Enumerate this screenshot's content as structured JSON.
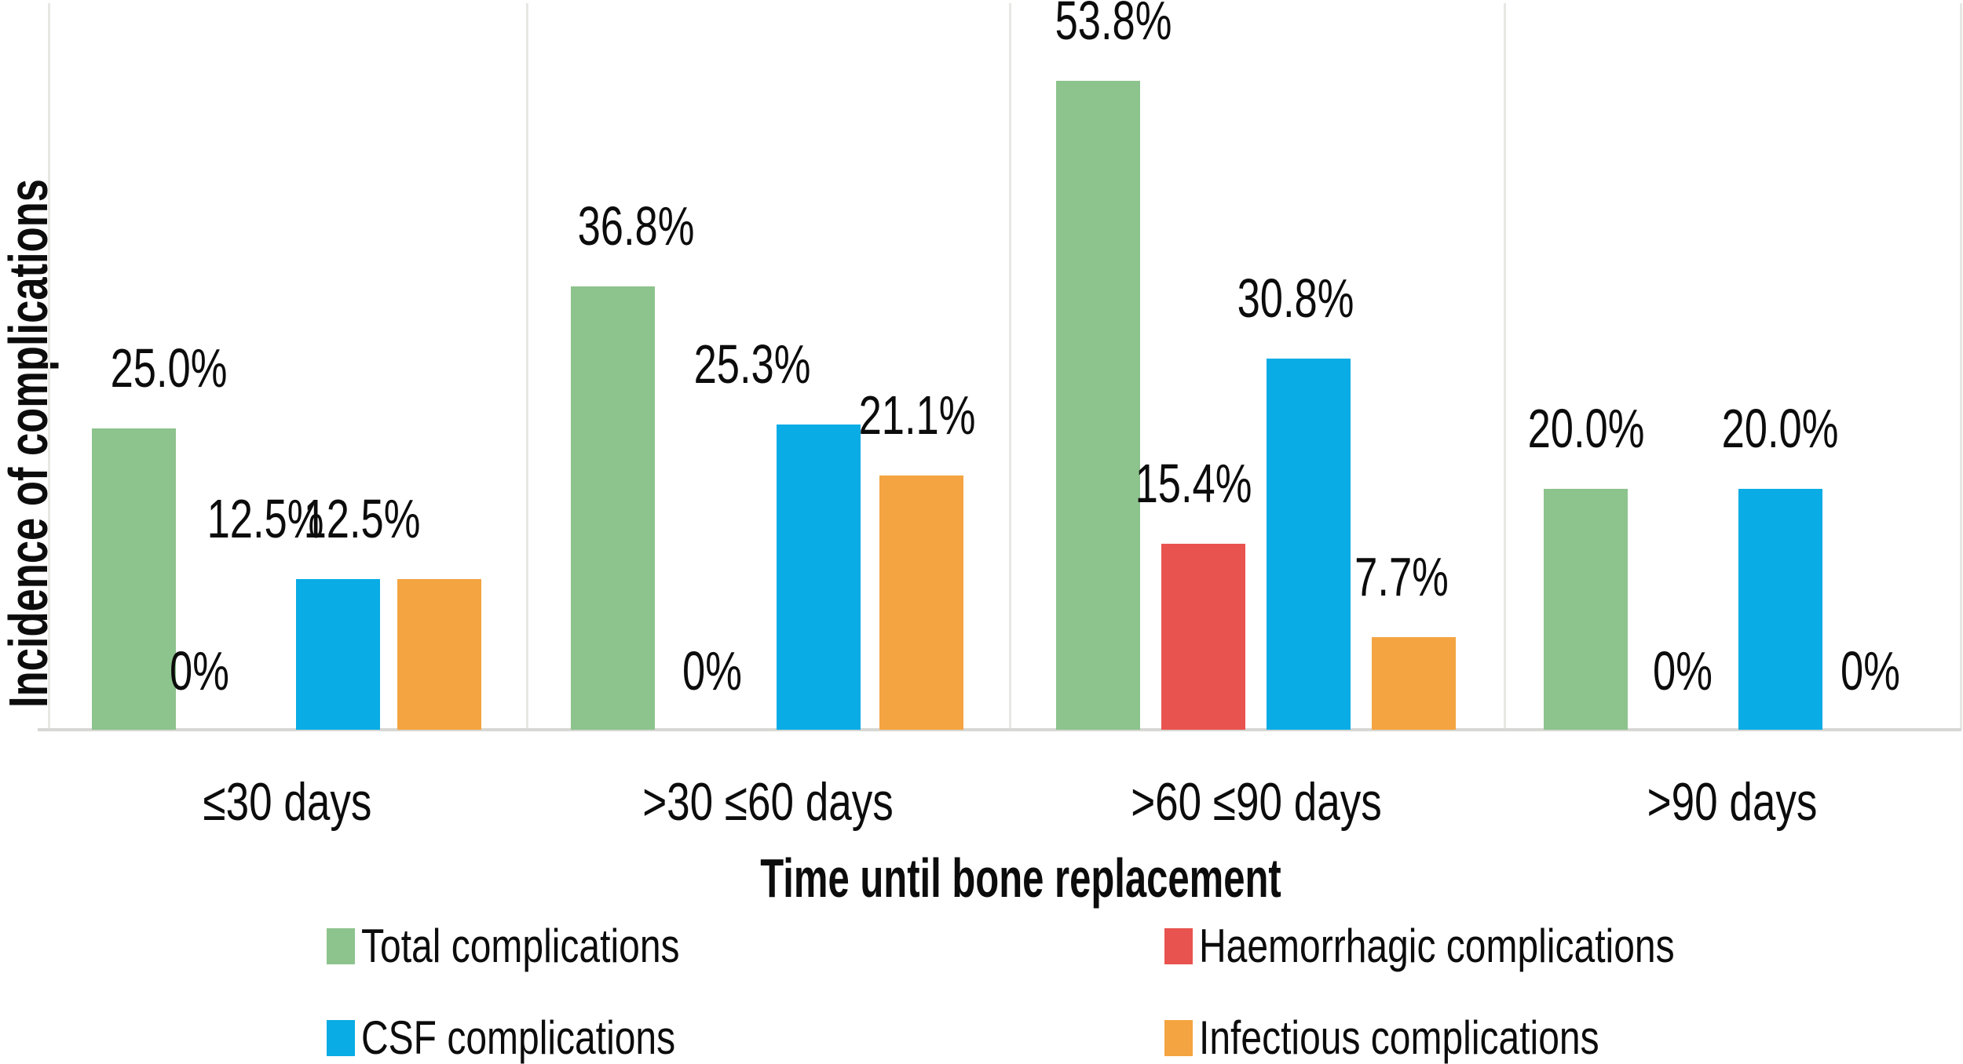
{
  "chart_data": {
    "type": "bar",
    "title": "",
    "xlabel": "Time until bone replacement",
    "ylabel": "Incidence of complications",
    "categories": [
      "≤30 days",
      ">30 ≤60 days",
      ">60 ≤90 days",
      ">90 days"
    ],
    "series": [
      {
        "name": "Total complications",
        "color": "#8dc38d",
        "values": [
          25.0,
          36.8,
          53.8,
          20.0
        ],
        "labels": [
          "25.0%",
          "36.8%",
          "53.8%",
          "20.0%"
        ]
      },
      {
        "name": "Haemorrhagic complications",
        "color": "#e8534f",
        "values": [
          0,
          0,
          15.4,
          0
        ],
        "labels": [
          "0%",
          "0%",
          "15.4%",
          "0%"
        ]
      },
      {
        "name": "CSF complications",
        "color": "#09ace4",
        "values": [
          12.5,
          25.3,
          30.8,
          20.0
        ],
        "labels": [
          "12.5%",
          "25.3%",
          "30.8%",
          "20.0%"
        ]
      },
      {
        "name": "Infectious complications",
        "color": "#f4a441",
        "values": [
          12.5,
          21.1,
          7.7,
          0
        ],
        "labels": [
          "12.5%",
          "21.1%",
          "7.7%",
          "0%"
        ]
      }
    ],
    "ylim": [
      0,
      60
    ],
    "value_suffix": "%",
    "grid": "vertical-panel-separators",
    "legend_position": "bottom-two-columns",
    "legend_order": [
      "Total complications",
      "Haemorrhagic complications",
      "CSF complications",
      "Infectious complications"
    ]
  }
}
